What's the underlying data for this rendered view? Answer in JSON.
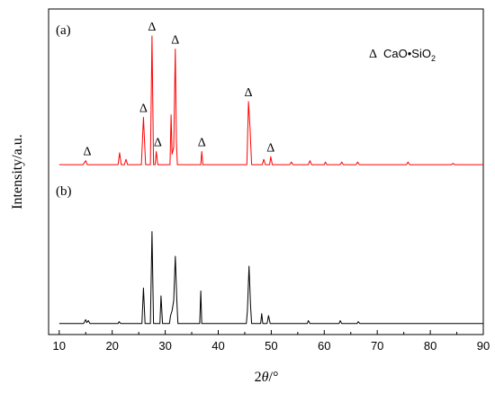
{
  "chart_data": {
    "type": "line",
    "xlabel_parts": [
      "2",
      "θ",
      "/°"
    ],
    "ylabel": "Intensity/a.u.",
    "xlim": [
      8,
      90
    ],
    "xticks": [
      10,
      20,
      30,
      40,
      50,
      60,
      70,
      80,
      90
    ],
    "legend": {
      "marker": "Δ",
      "text": "CaO•SiO",
      "subscript": "2",
      "placement": "top-right"
    },
    "series": [
      {
        "name": "(a)",
        "color": "#ff0000",
        "offset": 1.0,
        "points": [
          [
            10.0,
            0.02
          ],
          [
            14.5,
            0.02
          ],
          [
            15.0,
            0.05
          ],
          [
            15.3,
            0.02
          ],
          [
            16.0,
            0.02
          ],
          [
            21.1,
            0.02
          ],
          [
            21.4,
            0.11
          ],
          [
            21.7,
            0.02
          ],
          [
            22.3,
            0.02
          ],
          [
            22.6,
            0.06
          ],
          [
            22.9,
            0.02
          ],
          [
            25.5,
            0.02
          ],
          [
            25.9,
            0.38
          ],
          [
            26.3,
            0.02
          ],
          [
            27.2,
            0.02
          ],
          [
            27.5,
            1.0
          ],
          [
            27.8,
            0.02
          ],
          [
            28.1,
            0.02
          ],
          [
            28.3,
            0.12
          ],
          [
            28.6,
            0.02
          ],
          [
            30.9,
            0.02
          ],
          [
            31.1,
            0.4
          ],
          [
            31.3,
            0.1
          ],
          [
            31.6,
            0.15
          ],
          [
            31.9,
            0.9
          ],
          [
            32.1,
            0.2
          ],
          [
            32.3,
            0.02
          ],
          [
            36.7,
            0.02
          ],
          [
            36.9,
            0.12
          ],
          [
            37.1,
            0.02
          ],
          [
            45.4,
            0.02
          ],
          [
            45.7,
            0.5
          ],
          [
            46.0,
            0.3
          ],
          [
            46.3,
            0.02
          ],
          [
            48.3,
            0.02
          ],
          [
            48.6,
            0.06
          ],
          [
            48.9,
            0.02
          ],
          [
            49.7,
            0.02
          ],
          [
            49.9,
            0.08
          ],
          [
            50.2,
            0.02
          ],
          [
            53.5,
            0.02
          ],
          [
            53.8,
            0.04
          ],
          [
            54.1,
            0.02
          ],
          [
            57.0,
            0.02
          ],
          [
            57.3,
            0.05
          ],
          [
            57.6,
            0.02
          ],
          [
            60.0,
            0.02
          ],
          [
            60.2,
            0.04
          ],
          [
            60.5,
            0.02
          ],
          [
            63.0,
            0.02
          ],
          [
            63.3,
            0.04
          ],
          [
            63.6,
            0.02
          ],
          [
            66.0,
            0.02
          ],
          [
            66.3,
            0.04
          ],
          [
            66.6,
            0.02
          ],
          [
            75.5,
            0.02
          ],
          [
            75.8,
            0.04
          ],
          [
            76.1,
            0.02
          ],
          [
            84.0,
            0.02
          ],
          [
            84.3,
            0.03
          ],
          [
            84.6,
            0.02
          ],
          [
            90.0,
            0.02
          ]
        ]
      },
      {
        "name": "(b)",
        "color": "#000000",
        "offset": 0.0,
        "points": [
          [
            10.0,
            0.02
          ],
          [
            14.6,
            0.02
          ],
          [
            15.0,
            0.06
          ],
          [
            15.2,
            0.03
          ],
          [
            15.5,
            0.05
          ],
          [
            15.8,
            0.02
          ],
          [
            21.1,
            0.02
          ],
          [
            21.3,
            0.04
          ],
          [
            21.6,
            0.02
          ],
          [
            25.6,
            0.02
          ],
          [
            25.9,
            0.38
          ],
          [
            26.2,
            0.02
          ],
          [
            27.2,
            0.02
          ],
          [
            27.5,
            0.95
          ],
          [
            27.8,
            0.02
          ],
          [
            29.0,
            0.02
          ],
          [
            29.2,
            0.3
          ],
          [
            29.5,
            0.02
          ],
          [
            30.8,
            0.02
          ],
          [
            31.0,
            0.1
          ],
          [
            31.3,
            0.15
          ],
          [
            31.6,
            0.25
          ],
          [
            31.9,
            0.7
          ],
          [
            32.2,
            0.25
          ],
          [
            32.4,
            0.02
          ],
          [
            36.5,
            0.02
          ],
          [
            36.7,
            0.35
          ],
          [
            36.9,
            0.02
          ],
          [
            45.3,
            0.02
          ],
          [
            45.5,
            0.15
          ],
          [
            45.8,
            0.6
          ],
          [
            46.1,
            0.2
          ],
          [
            46.3,
            0.02
          ],
          [
            48.0,
            0.02
          ],
          [
            48.2,
            0.12
          ],
          [
            48.4,
            0.02
          ],
          [
            49.2,
            0.02
          ],
          [
            49.5,
            0.1
          ],
          [
            49.8,
            0.02
          ],
          [
            56.8,
            0.02
          ],
          [
            57.0,
            0.05
          ],
          [
            57.3,
            0.02
          ],
          [
            62.8,
            0.02
          ],
          [
            63.0,
            0.05
          ],
          [
            63.3,
            0.02
          ],
          [
            66.2,
            0.02
          ],
          [
            66.4,
            0.04
          ],
          [
            66.7,
            0.02
          ],
          [
            90.0,
            0.02
          ]
        ]
      }
    ],
    "peak_markers": [
      15.3,
      25.9,
      27.5,
      28.6,
      31.9,
      36.9,
      45.7,
      49.9
    ]
  }
}
